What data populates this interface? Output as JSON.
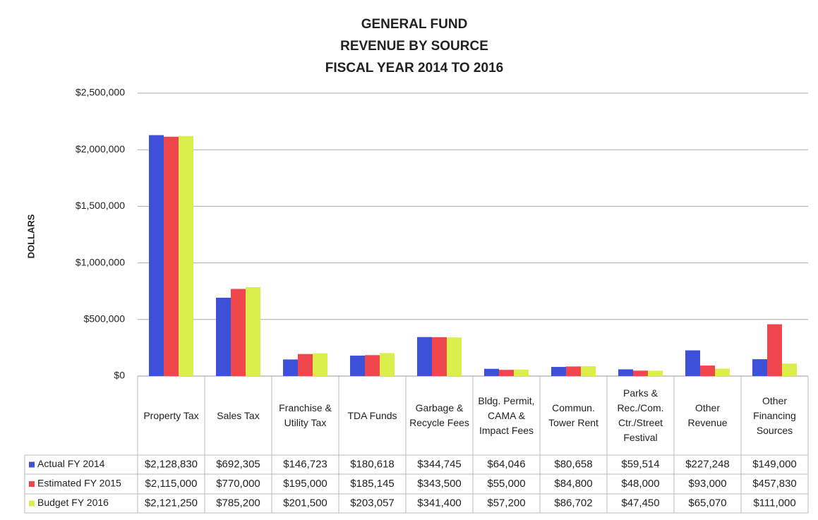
{
  "chart_data": {
    "type": "bar",
    "title": [
      "GENERAL FUND",
      "REVENUE BY SOURCE",
      "FISCAL YEAR 2014 TO 2016"
    ],
    "y_label": "DOLLARS",
    "categories": [
      "Property Tax",
      "Sales Tax",
      "Franchise & Utility Tax",
      "TDA Funds",
      "Garbage & Recycle Fees",
      "Bldg. Permit, CAMA & Impact Fees",
      "Commun. Tower Rent",
      "Parks & Rec./Com. Ctr./Street Festival",
      "Other Revenue",
      "Other Financing Sources"
    ],
    "series": [
      {
        "name": "Actual FY 2014",
        "color": "#3d50d8",
        "values": [
          2128830,
          692305,
          146723,
          180618,
          344745,
          64046,
          80658,
          59514,
          227248,
          149000
        ],
        "value_labels": [
          "$2,128,830",
          "$692,305",
          "$146,723",
          "$180,618",
          "$344,745",
          "$64,046",
          "$80,658",
          "$59,514",
          "$227,248",
          "$149,000"
        ]
      },
      {
        "name": "Estimated FY 2015",
        "color": "#f0474f",
        "values": [
          2115000,
          770000,
          195000,
          185145,
          343500,
          55000,
          84800,
          48000,
          93000,
          457830
        ],
        "value_labels": [
          "$2,115,000",
          "$770,000",
          "$195,000",
          "$185,145",
          "$343,500",
          "$55,000",
          "$84,800",
          "$48,000",
          "$93,000",
          "$457,830"
        ]
      },
      {
        "name": "Budget FY 2016",
        "color": "#dcee4c",
        "values": [
          2121250,
          785200,
          201500,
          203057,
          341400,
          57200,
          86702,
          47450,
          65070,
          111000
        ],
        "value_labels": [
          "$2,121,250",
          "$785,200",
          "$201,500",
          "$203,057",
          "$341,400",
          "$57,200",
          "$86,702",
          "$47,450",
          "$65,070",
          "$111,000"
        ]
      }
    ],
    "ylim": [
      0,
      2500000
    ],
    "yticks": [
      {
        "value": 0,
        "label": "$0"
      },
      {
        "value": 500000,
        "label": "$500,000"
      },
      {
        "value": 1000000,
        "label": "$1,000,000"
      },
      {
        "value": 1500000,
        "label": "$1,500,000"
      },
      {
        "value": 2000000,
        "label": "$2,000,000"
      },
      {
        "value": 2500000,
        "label": "$2,500,000"
      }
    ],
    "grid": true
  }
}
